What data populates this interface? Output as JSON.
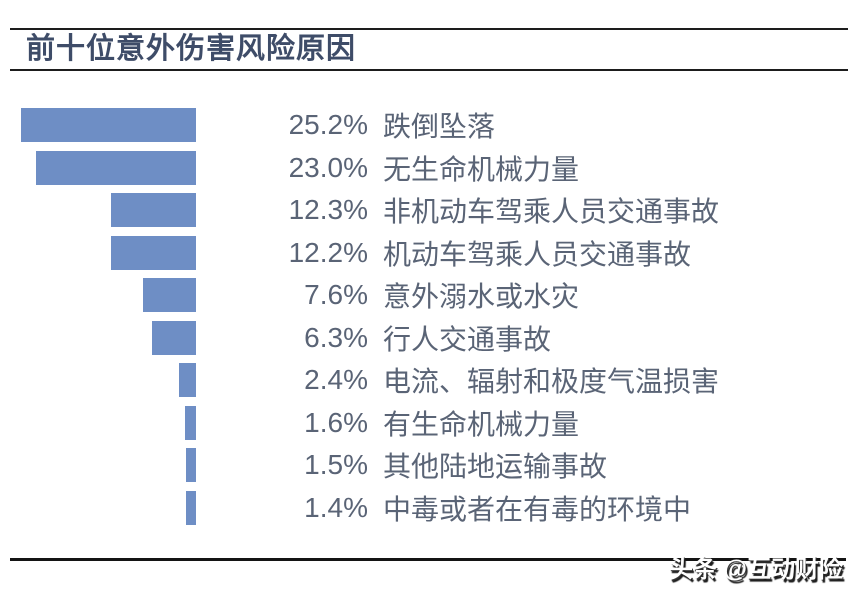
{
  "page_title": "前十位意外伤害风险原因",
  "watermark": "头条 @互动财险",
  "colors": {
    "bar": "#6e8ec5",
    "title_text": "#3e4c68",
    "body_text": "#5a6476",
    "rule": "#1d1d1d"
  },
  "chart_data": {
    "type": "bar",
    "orientation": "horizontal",
    "title": "前十位意外伤害风险原因",
    "bar_color": "#6e8ec5",
    "max_value": 25.2,
    "value_unit": "%",
    "legend": "none",
    "axis_lines": "none",
    "categories": [
      "跌倒坠落",
      "无生命机械力量",
      "非机动车驾乘人员交通事故",
      "机动车驾乘人员交通事故",
      "意外溺水或水灾",
      "行人交通事故",
      "电流、辐射和极度气温损害",
      "有生命机械力量",
      "其他陆地运输事故",
      "中毒或者在有毒的环境中"
    ],
    "values": [
      25.2,
      23.0,
      12.3,
      12.2,
      7.6,
      6.3,
      2.4,
      1.6,
      1.5,
      1.4
    ],
    "items": [
      {
        "pct": "25.2%",
        "value": 25.2,
        "label": "跌倒坠落"
      },
      {
        "pct": "23.0%",
        "value": 23.0,
        "label": "无生命机械力量"
      },
      {
        "pct": "12.3%",
        "value": 12.3,
        "label": "非机动车驾乘人员交通事故"
      },
      {
        "pct": "12.2%",
        "value": 12.2,
        "label": "机动车驾乘人员交通事故"
      },
      {
        "pct": "7.6%",
        "value": 7.6,
        "label": "意外溺水或水灾"
      },
      {
        "pct": "6.3%",
        "value": 6.3,
        "label": "行人交通事故"
      },
      {
        "pct": "2.4%",
        "value": 2.4,
        "label": "电流、辐射和极度气温损害"
      },
      {
        "pct": "1.6%",
        "value": 1.6,
        "label": "有生命机械力量"
      },
      {
        "pct": "1.5%",
        "value": 1.5,
        "label": "其他陆地运输事故"
      },
      {
        "pct": "1.4%",
        "value": 1.4,
        "label": "中毒或者在有毒的环境中"
      }
    ]
  }
}
